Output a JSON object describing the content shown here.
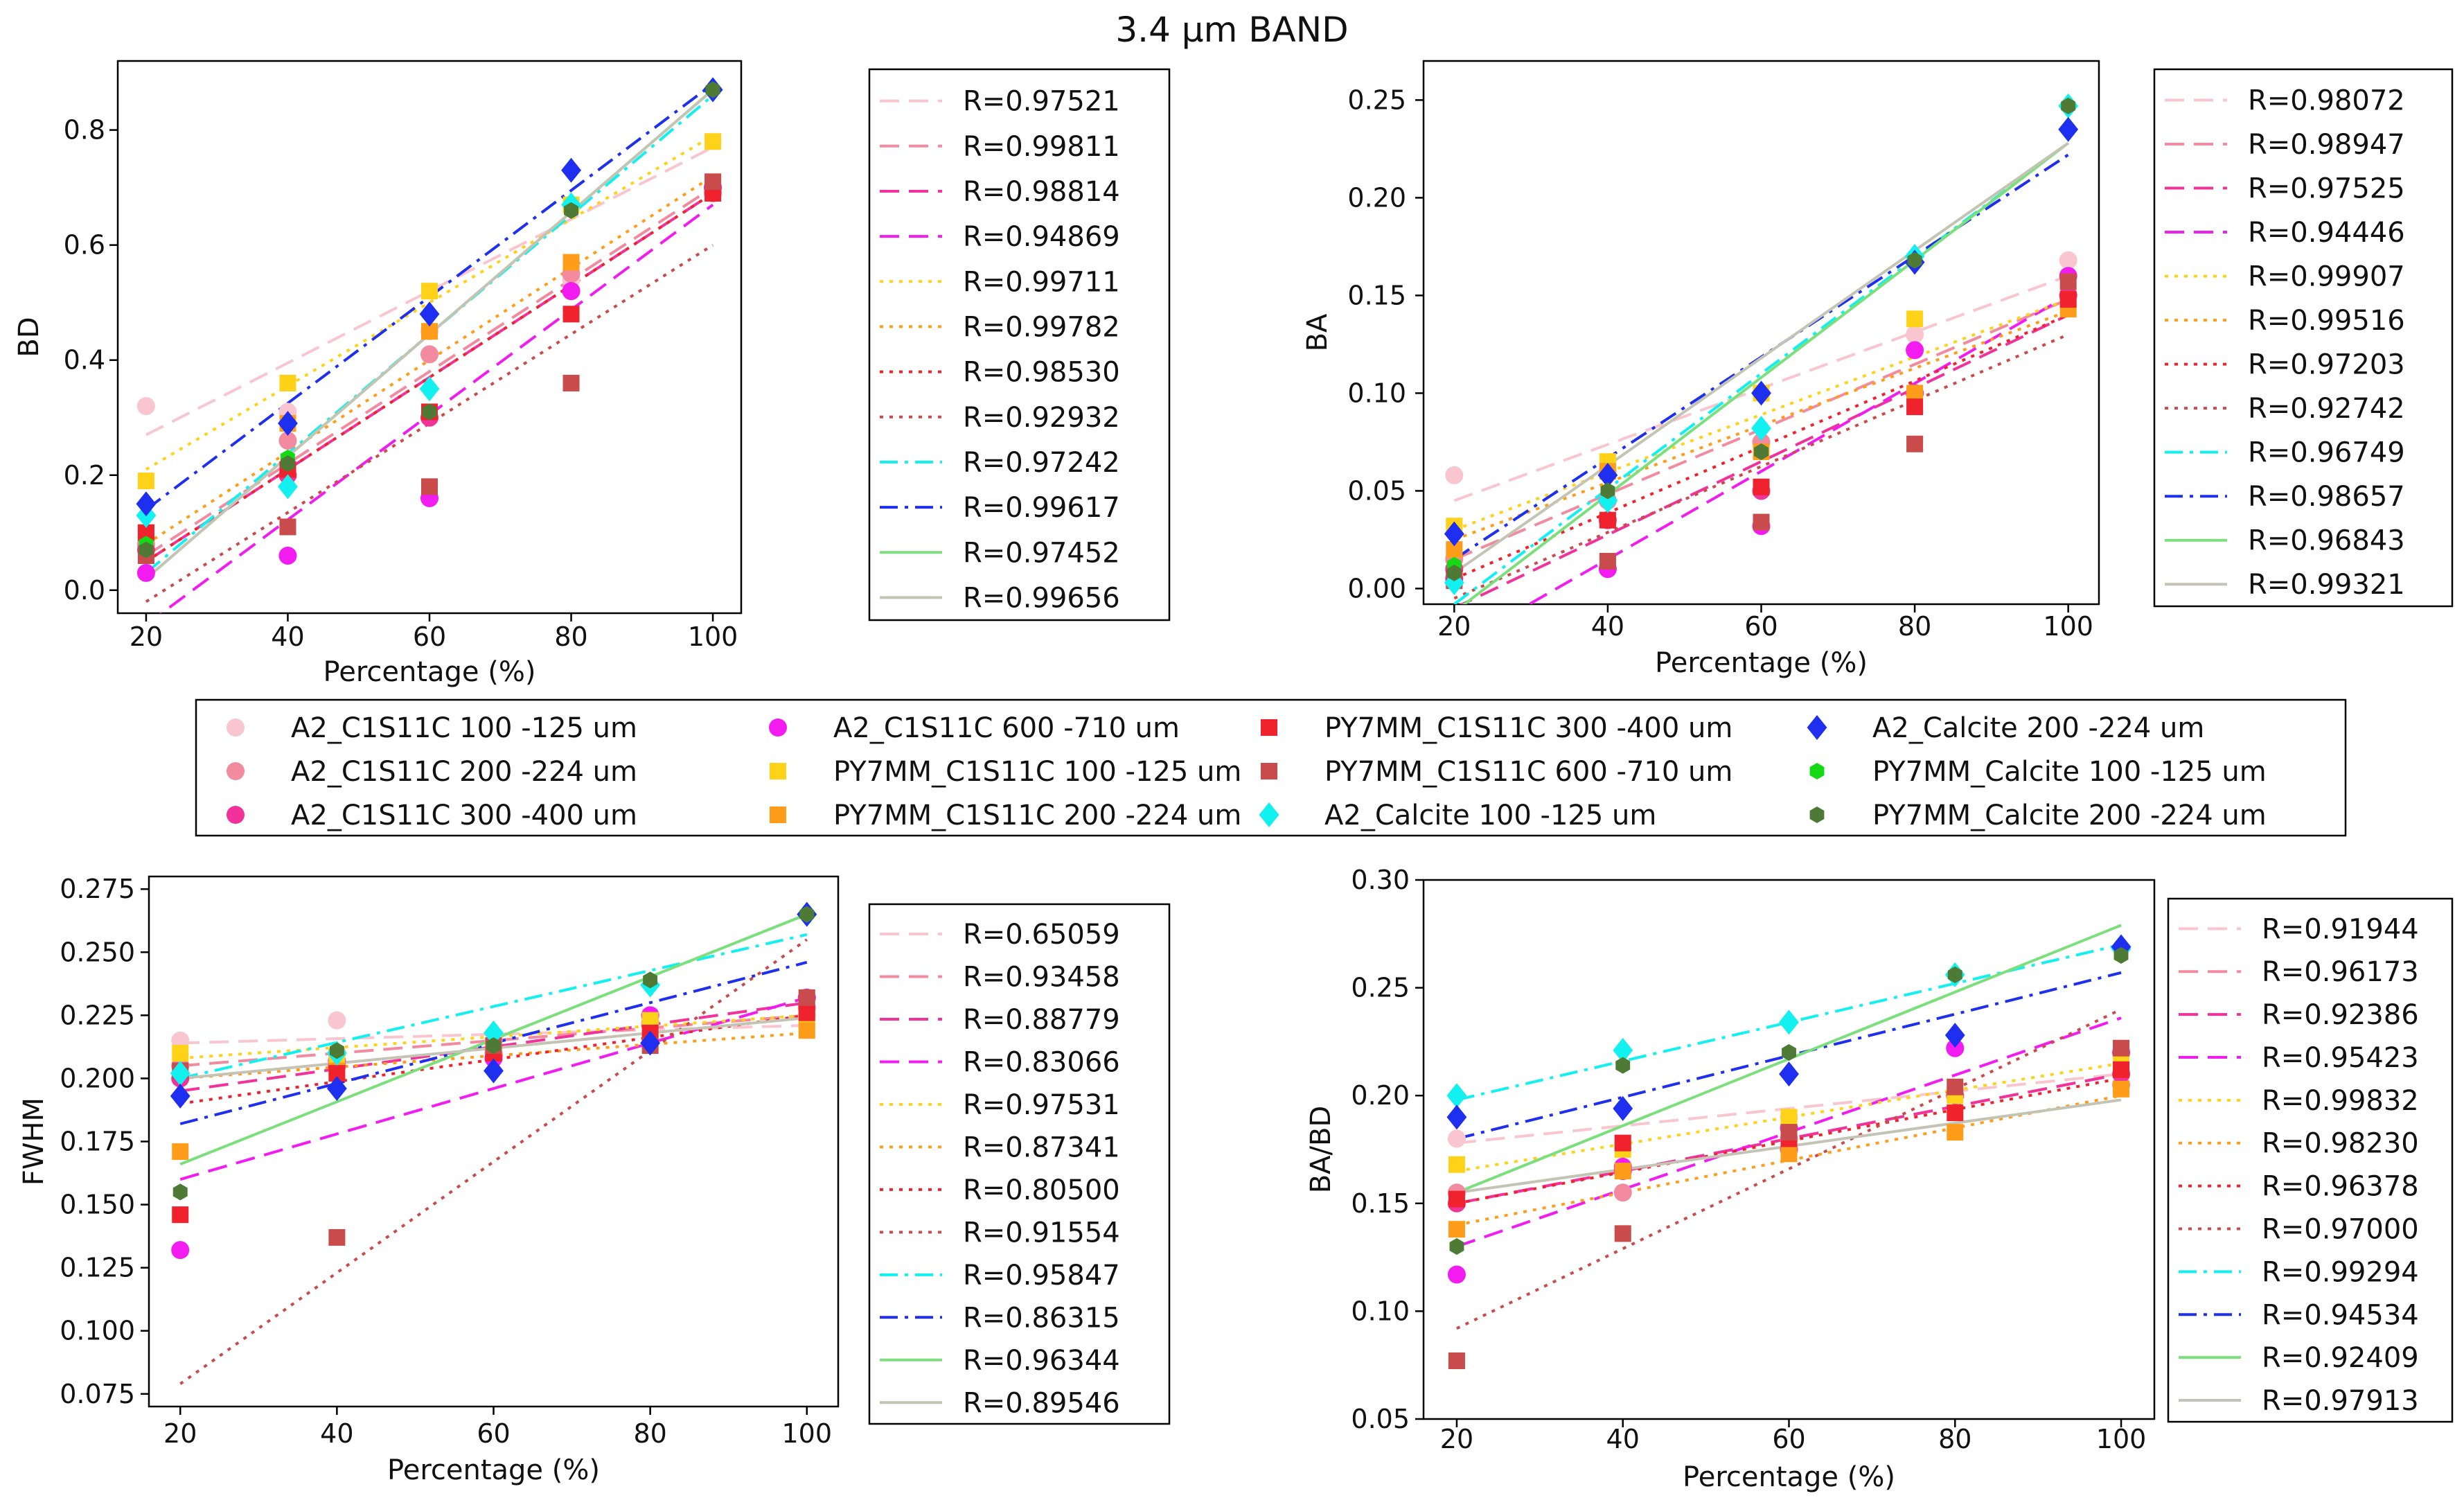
{
  "title": "3.4 μm BAND",
  "series_meta": [
    {
      "label": "A2_C1S11C 100 -125 um",
      "color": "#f9c6d0",
      "marker": "circle",
      "line": "dash"
    },
    {
      "label": "A2_C1S11C 200 -224 um",
      "color": "#f28aa0",
      "marker": "circle",
      "line": "dash"
    },
    {
      "label": "A2_C1S11C 300 -400 um",
      "color": "#f0329a",
      "marker": "circle",
      "line": "dash"
    },
    {
      "label": "A2_C1S11C 600 -710 um",
      "color": "#f21cf0",
      "marker": "circle",
      "line": "dash"
    },
    {
      "label": "PY7MM_C1S11C 100 -125 um",
      "color": "#ffd21a",
      "marker": "square",
      "line": "dot"
    },
    {
      "label": "PY7MM_C1S11C 200 -224 um",
      "color": "#ff9d1a",
      "marker": "square",
      "line": "dot"
    },
    {
      "label": "PY7MM_C1S11C 300 -400 um",
      "color": "#f0222e",
      "marker": "square",
      "line": "dot"
    },
    {
      "label": "PY7MM_C1S11C 600 -710 um",
      "color": "#c94b4b",
      "marker": "square",
      "line": "dot"
    },
    {
      "label": "A2_Calcite 100 -125 um",
      "color": "#12f0f0",
      "marker": "diamond",
      "line": "dashdot"
    },
    {
      "label": "A2_Calcite 200 -224 um",
      "color": "#1f2ff0",
      "marker": "diamond",
      "line": "dashdot"
    },
    {
      "label": "PY7MM_Calcite 100 -125 um",
      "color": "#16d916",
      "marker": "hexagon",
      "line": "solid"
    },
    {
      "label": "PY7MM_Calcite 200 -224 um",
      "color": "#4f7a36",
      "marker": "hexagon",
      "line": "solid"
    }
  ],
  "line_colors": [
    "#f9c6d0",
    "#f28aa0",
    "#f0329a",
    "#f21cf0",
    "#ffd21a",
    "#ff9d1a",
    "#f0222e",
    "#c94b4b",
    "#12f0f0",
    "#1f2ff0",
    "#7be07b",
    "#c4c4b4"
  ],
  "chart_data": [
    {
      "type": "scatter",
      "ylabel": "BD",
      "xlabel": "Percentage (%)",
      "x": [
        20,
        40,
        60,
        80,
        100
      ],
      "xticks": [
        "20",
        "40",
        "60",
        "80",
        "100"
      ],
      "ylim": [
        -0.04,
        0.92
      ],
      "yticks": [
        0.0,
        0.2,
        0.4,
        0.6,
        0.8
      ],
      "ytick_labels": [
        "0.0",
        "0.2",
        "0.4",
        "0.6",
        "0.8"
      ],
      "r_values": [
        "R=0.97521",
        "R=0.99811",
        "R=0.98814",
        "R=0.94869",
        "R=0.99711",
        "R=0.99782",
        "R=0.98530",
        "R=0.92932",
        "R=0.97242",
        "R=0.99617",
        "R=0.97452",
        "R=0.99656"
      ],
      "series": [
        {
          "values": [
            0.32,
            0.31,
            0.45,
            0.54,
            0.7
          ]
        },
        {
          "values": [
            0.08,
            0.26,
            0.41,
            0.55,
            0.69
          ]
        },
        {
          "values": [
            0.07,
            0.2,
            0.3,
            0.52,
            0.7
          ]
        },
        {
          "values": [
            0.03,
            0.06,
            0.16,
            0.52,
            0.7
          ]
        },
        {
          "values": [
            0.19,
            0.36,
            0.52,
            0.67,
            0.78
          ]
        },
        {
          "values": [
            0.1,
            0.29,
            0.45,
            0.57,
            0.71
          ]
        },
        {
          "values": [
            0.1,
            0.21,
            0.31,
            0.48,
            0.69
          ]
        },
        {
          "values": [
            0.06,
            0.11,
            0.18,
            0.36,
            0.71
          ]
        },
        {
          "values": [
            0.13,
            0.18,
            0.35,
            0.67,
            0.87
          ]
        },
        {
          "values": [
            0.15,
            0.29,
            0.48,
            0.73,
            0.87
          ]
        },
        {
          "values": [
            0.08,
            0.23,
            0.31,
            0.66,
            0.87
          ]
        },
        {
          "values": [
            0.07,
            0.22,
            0.31,
            0.66,
            0.87
          ]
        }
      ],
      "fits": [
        [
          0.27,
          0.77
        ],
        [
          0.06,
          0.7
        ],
        [
          0.05,
          0.69
        ],
        [
          -0.06,
          0.67
        ],
        [
          0.21,
          0.79
        ],
        [
          0.08,
          0.72
        ],
        [
          0.05,
          0.69
        ],
        [
          -0.02,
          0.6
        ],
        [
          0.03,
          0.86
        ],
        [
          0.14,
          0.88
        ],
        [
          0.02,
          0.87
        ],
        [
          0.02,
          0.87
        ]
      ]
    },
    {
      "type": "scatter",
      "ylabel": "BA",
      "xlabel": "Percentage (%)",
      "x": [
        20,
        40,
        60,
        80,
        100
      ],
      "xticks": [
        "20",
        "40",
        "60",
        "80",
        "100"
      ],
      "ylim": [
        -0.008,
        0.27
      ],
      "yticks": [
        0.0,
        0.05,
        0.1,
        0.15,
        0.2,
        0.25
      ],
      "ytick_labels": [
        "0.00",
        "0.05",
        "0.10",
        "0.15",
        "0.20",
        "0.25"
      ],
      "r_values": [
        "R=0.98072",
        "R=0.98947",
        "R=0.97525",
        "R=0.94446",
        "R=0.99907",
        "R=0.99516",
        "R=0.97203",
        "R=0.92742",
        "R=0.96749",
        "R=0.98657",
        "R=0.96843",
        "R=0.99321"
      ],
      "series": [
        {
          "values": [
            0.058,
            0.06,
            0.1,
            0.13,
            0.168
          ]
        },
        {
          "values": [
            0.015,
            0.045,
            0.075,
            0.1,
            0.15
          ]
        },
        {
          "values": [
            0.01,
            0.035,
            0.05,
            0.1,
            0.15
          ]
        },
        {
          "values": [
            0.005,
            0.01,
            0.032,
            0.122,
            0.16
          ]
        },
        {
          "values": [
            0.032,
            0.065,
            0.1,
            0.138,
            0.145
          ]
        },
        {
          "values": [
            0.02,
            0.06,
            0.07,
            0.1,
            0.143
          ]
        },
        {
          "values": [
            0.005,
            0.035,
            0.052,
            0.093,
            0.148
          ]
        },
        {
          "values": [
            0.004,
            0.014,
            0.034,
            0.074,
            0.157
          ]
        },
        {
          "values": [
            0.003,
            0.045,
            0.082,
            0.17,
            0.247
          ]
        },
        {
          "values": [
            0.028,
            0.058,
            0.1,
            0.167,
            0.235
          ]
        },
        {
          "values": [
            0.012,
            0.05,
            0.07,
            0.168,
            0.247
          ]
        },
        {
          "values": [
            0.008,
            0.05,
            0.07,
            0.168,
            0.247
          ]
        }
      ],
      "fits": [
        [
          0.045,
          0.16
        ],
        [
          0.015,
          0.148
        ],
        [
          -0.01,
          0.14
        ],
        [
          -0.03,
          0.15
        ],
        [
          0.03,
          0.148
        ],
        [
          0.025,
          0.142
        ],
        [
          0.005,
          0.14
        ],
        [
          -0.005,
          0.13
        ],
        [
          -0.008,
          0.228
        ],
        [
          0.015,
          0.222
        ],
        [
          -0.012,
          0.228
        ],
        [
          0.008,
          0.228
        ]
      ]
    },
    {
      "type": "scatter",
      "ylabel": "FWHM",
      "xlabel": "Percentage (%)",
      "x": [
        20,
        40,
        60,
        80,
        100
      ],
      "xticks": [
        "20",
        "40",
        "60",
        "80",
        "100"
      ],
      "ylim": [
        0.07,
        0.28
      ],
      "yticks": [
        0.075,
        0.1,
        0.125,
        0.15,
        0.175,
        0.2,
        0.225,
        0.25,
        0.275
      ],
      "ytick_labels": [
        "0.075",
        "0.100",
        "0.125",
        "0.150",
        "0.175",
        "0.200",
        "0.225",
        "0.250",
        "0.275"
      ],
      "r_values": [
        "R=0.65059",
        "R=0.93458",
        "R=0.88779",
        "R=0.83066",
        "R=0.97531",
        "R=0.87341",
        "R=0.80500",
        "R=0.91554",
        "R=0.95847",
        "R=0.86315",
        "R=0.96344",
        "R=0.89546"
      ],
      "series": [
        {
          "values": [
            0.215,
            0.223,
            0.215,
            0.222,
            0.225
          ]
        },
        {
          "values": [
            0.205,
            0.21,
            0.21,
            0.222,
            0.228
          ]
        },
        {
          "values": [
            0.2,
            0.205,
            0.208,
            0.225,
            0.232
          ]
        },
        {
          "values": [
            0.132,
            0.207,
            0.208,
            0.225,
            0.232
          ]
        },
        {
          "values": [
            0.21,
            0.208,
            0.212,
            0.223,
            0.223
          ]
        },
        {
          "values": [
            0.171,
            0.203,
            0.21,
            0.215,
            0.219
          ]
        },
        {
          "values": [
            0.146,
            0.202,
            0.21,
            0.218,
            0.226
          ]
        },
        {
          "values": [
            0.203,
            0.137,
            0.213,
            0.213,
            0.232
          ]
        },
        {
          "values": [
            0.202,
            0.21,
            0.218,
            0.237,
            0.265
          ]
        },
        {
          "values": [
            0.193,
            0.196,
            0.203,
            0.214,
            0.265
          ]
        },
        {
          "values": [
            0.155,
            0.211,
            0.213,
            0.239,
            0.265
          ]
        },
        {
          "values": [
            0.155,
            0.211,
            0.213,
            0.239,
            0.265
          ]
        }
      ],
      "fits": [
        [
          0.214,
          0.221
        ],
        [
          0.205,
          0.225
        ],
        [
          0.195,
          0.23
        ],
        [
          0.16,
          0.232
        ],
        [
          0.208,
          0.225
        ],
        [
          0.2,
          0.218
        ],
        [
          0.19,
          0.225
        ],
        [
          0.079,
          0.255
        ],
        [
          0.2,
          0.257
        ],
        [
          0.182,
          0.246
        ],
        [
          0.166,
          0.265
        ],
        [
          0.2,
          0.224
        ]
      ]
    },
    {
      "type": "scatter",
      "ylabel": "BA/BD",
      "xlabel": "Percentage (%)",
      "x": [
        20,
        40,
        60,
        80,
        100
      ],
      "xticks": [
        "20",
        "40",
        "60",
        "80",
        "100"
      ],
      "ylim": [
        0.05,
        0.3
      ],
      "yticks": [
        0.05,
        0.1,
        0.15,
        0.2,
        0.25,
        0.3
      ],
      "ytick_labels": [
        "0.05",
        "0.10",
        "0.15",
        "0.20",
        "0.25",
        "0.30"
      ],
      "r_values": [
        "R=0.91944",
        "R=0.96173",
        "R=0.92386",
        "R=0.95423",
        "R=0.99832",
        "R=0.98230",
        "R=0.96378",
        "R=0.97000",
        "R=0.99294",
        "R=0.94534",
        "R=0.92409",
        "R=0.97913"
      ],
      "series": [
        {
          "values": [
            0.18,
            0.165,
            0.19,
            0.2,
            0.205
          ]
        },
        {
          "values": [
            0.155,
            0.155,
            0.18,
            0.2,
            0.205
          ]
        },
        {
          "values": [
            0.15,
            0.165,
            0.175,
            0.2,
            0.21
          ]
        },
        {
          "values": [
            0.117,
            0.167,
            0.185,
            0.222,
            0.22
          ]
        },
        {
          "values": [
            0.168,
            0.175,
            0.19,
            0.2,
            0.215
          ]
        },
        {
          "values": [
            0.138,
            0.165,
            0.173,
            0.183,
            0.203
          ]
        },
        {
          "values": [
            0.152,
            0.178,
            0.18,
            0.192,
            0.212
          ]
        },
        {
          "values": [
            0.077,
            0.136,
            0.183,
            0.204,
            0.222
          ]
        },
        {
          "values": [
            0.2,
            0.221,
            0.234,
            0.256,
            0.268
          ]
        },
        {
          "values": [
            0.19,
            0.194,
            0.21,
            0.228,
            0.269
          ]
        },
        {
          "values": [
            0.13,
            0.214,
            0.22,
            0.256,
            0.265
          ]
        },
        {
          "values": [
            0.13,
            0.214,
            0.22,
            0.256,
            0.265
          ]
        }
      ],
      "fits": [
        [
          0.178,
          0.21
        ],
        [
          0.15,
          0.21
        ],
        [
          0.15,
          0.21
        ],
        [
          0.13,
          0.236
        ],
        [
          0.165,
          0.215
        ],
        [
          0.14,
          0.2
        ],
        [
          0.15,
          0.208
        ],
        [
          0.092,
          0.24
        ],
        [
          0.198,
          0.27
        ],
        [
          0.18,
          0.257
        ],
        [
          0.155,
          0.279
        ],
        [
          0.155,
          0.198
        ]
      ]
    }
  ]
}
